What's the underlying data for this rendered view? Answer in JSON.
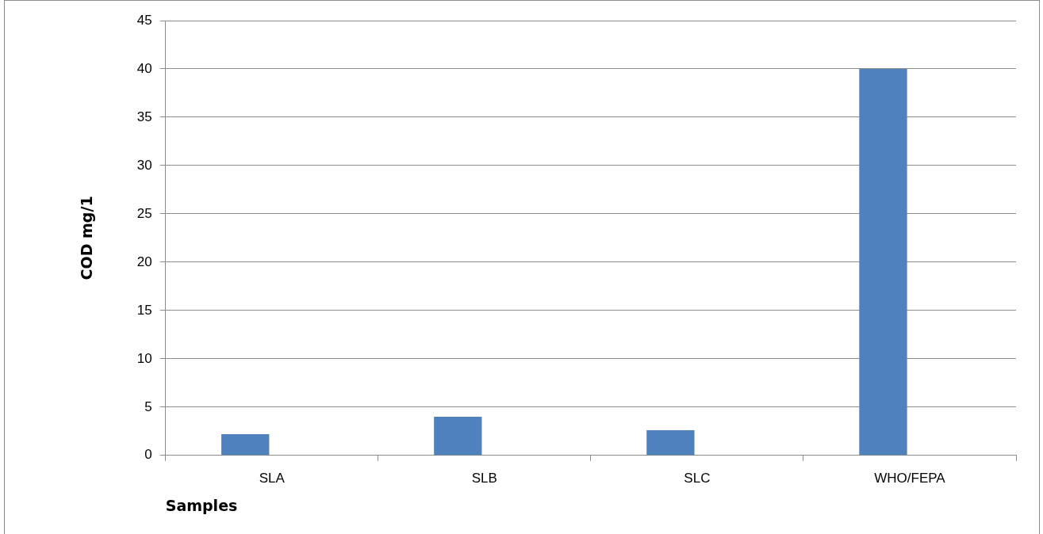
{
  "chart_data": {
    "type": "bar",
    "xlabel": "Samples",
    "ylabel": "COD mg/1",
    "categories": [
      "SLA",
      "SLB",
      "SLC",
      "WHO/FEPA"
    ],
    "values": [
      2.2,
      4.0,
      2.6,
      40
    ],
    "color": "#4f81bd",
    "ylim": [
      0,
      45
    ],
    "yticks": [
      0,
      5,
      10,
      15,
      20,
      25,
      30,
      35,
      40,
      45
    ],
    "grid": "y",
    "legend": false
  }
}
